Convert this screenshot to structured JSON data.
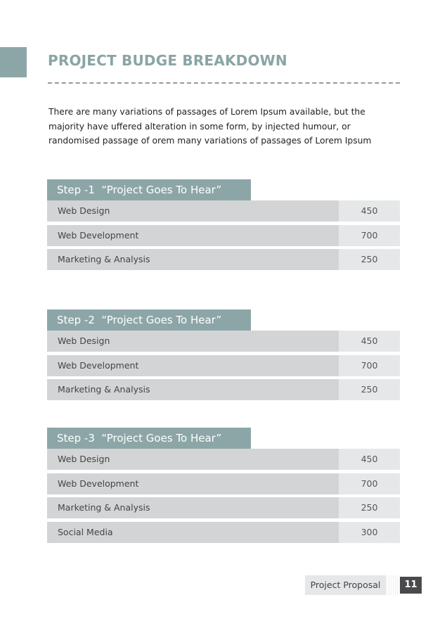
{
  "title": "PROJECT BUDGE BREAKDOWN",
  "intro": "There are many variations of passages of Lorem Ipsum available, but the majority have uffered alteration in some form, by injected humour, or randomised passage of orem many variations of passages of Lorem Ipsum",
  "sections": [
    {
      "heading": "Step -1  “Project Goes To Hear”",
      "rows": [
        {
          "label": "Web Design",
          "value": "450"
        },
        {
          "label": "Web Development",
          "value": "700"
        },
        {
          "label": "Marketing & Analysis",
          "value": "250"
        }
      ]
    },
    {
      "heading": "Step -2  “Project Goes To Hear”",
      "rows": [
        {
          "label": "Web Design",
          "value": "450"
        },
        {
          "label": "Web Development",
          "value": "700"
        },
        {
          "label": "Marketing & Analysis",
          "value": "250"
        }
      ]
    },
    {
      "heading": "Step -3  “Project Goes To Hear”",
      "rows": [
        {
          "label": "Web Design",
          "value": "450"
        },
        {
          "label": "Web Development",
          "value": "700"
        },
        {
          "label": "Marketing & Analysis",
          "value": "250"
        },
        {
          "label": "Social Media",
          "value": "300"
        }
      ]
    }
  ],
  "footer": {
    "label": "Project Proposal",
    "page": "11"
  },
  "colors": {
    "accent": "#8ca6a7",
    "row": "#d3d4d6",
    "value_cell": "#e6e7e8",
    "page_badge": "#4a4a4c"
  }
}
